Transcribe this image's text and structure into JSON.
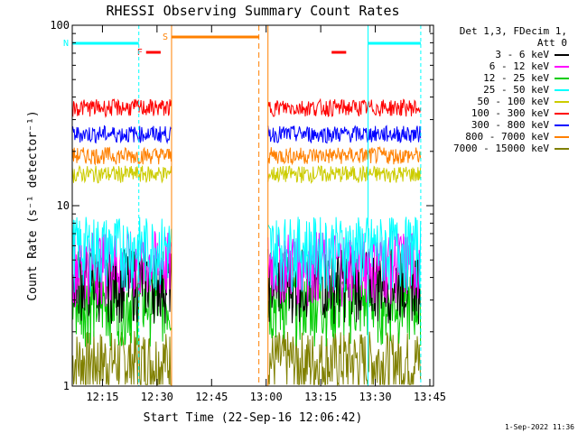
{
  "chart_data": {
    "type": "line",
    "title": "RHESSI Observing Summary Count Rates",
    "xlabel": "Start Time (22-Sep-16 12:06:42)",
    "ylabel": "Count Rate (s⁻¹ detector⁻¹)",
    "yscale": "log",
    "ylim": [
      1,
      100
    ],
    "xlim": [
      "12:06:42",
      "13:46:00"
    ],
    "x_ticks": [
      "12:15",
      "12:30",
      "12:45",
      "13:00",
      "13:15",
      "13:30",
      "13:45"
    ],
    "y_ticks": [
      "1",
      "10",
      "100"
    ],
    "grid": false,
    "legend_position": "right",
    "legend_header": [
      "Det 1,3, FDecim 1,",
      "Att 0"
    ],
    "series": [
      {
        "name": "3 - 6 keV",
        "color": "#000000",
        "level": 4.0
      },
      {
        "name": "6 - 12 keV",
        "color": "#ff00ff",
        "level": 5.0
      },
      {
        "name": "12 - 25 keV",
        "color": "#00cc00",
        "level": 3.0
      },
      {
        "name": "25 - 50 keV",
        "color": "#00ffff",
        "level": 6.0
      },
      {
        "name": "50 - 100 keV",
        "color": "#cccc00",
        "level": 15.0
      },
      {
        "name": "100 - 300 keV",
        "color": "#ff0000",
        "level": 35.0
      },
      {
        "name": "300 - 800 keV",
        "color": "#0000ff",
        "level": 25.0
      },
      {
        "name": "800 - 7000 keV",
        "color": "#ff8000",
        "level": 19.0
      },
      {
        "name": "7000 - 15000 keV",
        "color": "#808000",
        "level": 1.4
      }
    ],
    "flags": [
      {
        "label": "F",
        "color": "#ff0000"
      },
      {
        "label": "N",
        "color": "#00ffff"
      },
      {
        "label": "S",
        "color": "#ff8000"
      }
    ]
  },
  "footer_timestamp": "1-Sep-2022 11:36"
}
